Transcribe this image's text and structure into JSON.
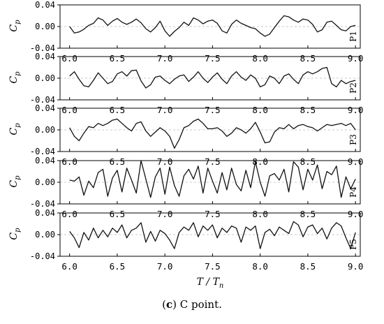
{
  "figure": {
    "caption_letter": "c",
    "caption_paren_open": "(",
    "caption_paren_close": ")",
    "caption_text": " C point."
  },
  "chart_data": [
    {
      "type": "line",
      "panel": "P1",
      "ylabel": "Cp",
      "ylim": [
        -0.04,
        0.04
      ],
      "yticks": [
        "0.04",
        "0.00",
        "-0.04"
      ],
      "xlim": [
        5.9,
        9.05
      ],
      "xticks": [
        "6.0",
        "6.5",
        "7.0",
        "7.5",
        "8.0",
        "8.5",
        "9.0"
      ],
      "grid": "y-dashed",
      "series": [
        {
          "x": [
            6.0,
            6.05,
            6.1,
            6.15,
            6.2,
            6.25,
            6.3,
            6.35,
            6.4,
            6.45,
            6.5,
            6.55,
            6.6,
            6.65,
            6.7,
            6.75,
            6.8,
            6.85,
            6.9,
            6.95,
            7.0,
            7.05,
            7.1,
            7.15,
            7.2,
            7.25,
            7.3,
            7.35,
            7.4,
            7.45,
            7.5,
            7.55,
            7.6,
            7.65,
            7.7,
            7.75,
            7.8,
            7.85,
            7.9,
            7.95,
            8.0,
            8.05,
            8.1,
            8.15,
            8.2,
            8.25,
            8.3,
            8.35,
            8.4,
            8.45,
            8.5,
            8.55,
            8.6,
            8.65,
            8.7,
            8.75,
            8.8,
            8.85,
            8.9,
            8.95,
            9.0
          ],
          "y": [
            0.0,
            -0.012,
            -0.01,
            -0.005,
            0.002,
            0.006,
            0.016,
            0.012,
            0.002,
            0.01,
            0.015,
            0.008,
            0.004,
            0.008,
            0.014,
            0.007,
            -0.004,
            -0.01,
            -0.002,
            0.01,
            -0.008,
            -0.018,
            -0.009,
            -0.002,
            0.008,
            0.002,
            0.016,
            0.012,
            0.005,
            0.01,
            0.012,
            0.006,
            -0.008,
            -0.012,
            0.004,
            0.012,
            0.006,
            0.002,
            -0.002,
            -0.004,
            -0.012,
            -0.018,
            -0.014,
            -0.002,
            0.01,
            0.02,
            0.018,
            0.012,
            0.008,
            0.014,
            0.012,
            0.004,
            -0.01,
            -0.006,
            0.008,
            0.01,
            0.002,
            -0.006,
            -0.008,
            0.0,
            0.002
          ]
        }
      ]
    },
    {
      "type": "line",
      "panel": "P2",
      "ylabel": "Cp",
      "ylim": [
        -0.04,
        0.04
      ],
      "yticks": [
        "0.04",
        "0.00",
        "-0.04"
      ],
      "xlim": [
        5.9,
        9.05
      ],
      "xticks": [
        "6.0",
        "6.5",
        "7.0",
        "7.5",
        "8.0",
        "8.5",
        "9.0"
      ],
      "grid": "y-dashed",
      "series": [
        {
          "x": [
            6.0,
            6.05,
            6.1,
            6.15,
            6.2,
            6.25,
            6.3,
            6.35,
            6.4,
            6.45,
            6.5,
            6.55,
            6.6,
            6.65,
            6.7,
            6.75,
            6.8,
            6.85,
            6.9,
            6.95,
            7.0,
            7.05,
            7.1,
            7.15,
            7.2,
            7.25,
            7.3,
            7.35,
            7.4,
            7.45,
            7.5,
            7.55,
            7.6,
            7.65,
            7.7,
            7.75,
            7.8,
            7.85,
            7.9,
            7.95,
            8.0,
            8.05,
            8.1,
            8.15,
            8.2,
            8.25,
            8.3,
            8.35,
            8.4,
            8.45,
            8.5,
            8.55,
            8.6,
            8.65,
            8.7,
            8.75,
            8.8,
            8.85,
            8.9,
            8.95,
            9.0
          ],
          "y": [
            0.004,
            0.012,
            -0.002,
            -0.014,
            -0.016,
            -0.004,
            0.01,
            0.0,
            -0.01,
            -0.006,
            0.008,
            0.012,
            0.004,
            0.014,
            0.015,
            -0.005,
            -0.018,
            -0.012,
            0.002,
            0.004,
            -0.004,
            -0.01,
            -0.002,
            0.004,
            0.006,
            -0.006,
            0.002,
            0.012,
            0.0,
            -0.008,
            0.002,
            0.01,
            -0.002,
            -0.01,
            0.004,
            0.012,
            0.002,
            -0.004,
            0.006,
            0.0,
            -0.016,
            -0.012,
            0.004,
            0.0,
            -0.01,
            0.004,
            0.008,
            -0.002,
            -0.01,
            0.006,
            0.012,
            0.008,
            0.012,
            0.018,
            0.02,
            -0.01,
            -0.016,
            -0.004,
            -0.01,
            -0.006,
            -0.004
          ]
        }
      ]
    },
    {
      "type": "line",
      "panel": "P3",
      "ylabel": "Cp",
      "ylim": [
        -0.04,
        0.04
      ],
      "yticks": [
        "0.04",
        "0.00",
        "-0.04"
      ],
      "xlim": [
        5.9,
        9.05
      ],
      "xticks": [
        "6.0",
        "6.5",
        "7.0",
        "7.5",
        "8.0",
        "8.5",
        "9.0"
      ],
      "grid": "y-dashed",
      "series": [
        {
          "x": [
            6.0,
            6.05,
            6.1,
            6.15,
            6.2,
            6.25,
            6.3,
            6.35,
            6.4,
            6.45,
            6.5,
            6.55,
            6.6,
            6.65,
            6.7,
            6.75,
            6.8,
            6.85,
            6.9,
            6.95,
            7.0,
            7.05,
            7.1,
            7.15,
            7.2,
            7.25,
            7.3,
            7.35,
            7.4,
            7.45,
            7.5,
            7.55,
            7.6,
            7.65,
            7.7,
            7.75,
            7.8,
            7.85,
            7.9,
            7.95,
            8.0,
            8.05,
            8.1,
            8.15,
            8.2,
            8.25,
            8.3,
            8.35,
            8.4,
            8.45,
            8.5,
            8.55,
            8.6,
            8.65,
            8.7,
            8.75,
            8.8,
            8.85,
            8.9,
            8.95,
            9.0
          ],
          "y": [
            0.004,
            -0.012,
            -0.02,
            -0.006,
            0.006,
            0.004,
            0.012,
            0.008,
            0.012,
            0.018,
            0.02,
            0.012,
            0.004,
            -0.002,
            0.012,
            0.015,
            -0.002,
            -0.012,
            -0.004,
            0.004,
            -0.002,
            -0.012,
            -0.034,
            -0.018,
            0.004,
            0.008,
            0.016,
            0.02,
            0.012,
            0.002,
            0.002,
            0.004,
            -0.002,
            -0.012,
            -0.006,
            0.004,
            0.0,
            -0.006,
            0.002,
            0.014,
            -0.004,
            -0.024,
            -0.022,
            -0.004,
            0.004,
            0.002,
            0.01,
            0.002,
            0.008,
            0.01,
            0.006,
            0.004,
            -0.002,
            0.004,
            0.01,
            0.008,
            0.01,
            0.012,
            0.008,
            0.012,
            0.0
          ]
        }
      ]
    },
    {
      "type": "line",
      "panel": "P4",
      "ylabel": "Cp",
      "ylim": [
        -0.04,
        0.04
      ],
      "yticks": [
        "0.04",
        "0.00",
        "-0.04"
      ],
      "xlim": [
        5.9,
        9.05
      ],
      "xticks": [
        "6.0",
        "6.5",
        "7.0",
        "7.5",
        "8.0",
        "8.5",
        "9.0"
      ],
      "grid": "y-dashed",
      "series": [
        {
          "x": [
            6.0,
            6.05,
            6.1,
            6.15,
            6.2,
            6.25,
            6.3,
            6.35,
            6.4,
            6.45,
            6.5,
            6.55,
            6.6,
            6.65,
            6.7,
            6.75,
            6.8,
            6.85,
            6.9,
            6.95,
            7.0,
            7.05,
            7.1,
            7.15,
            7.2,
            7.25,
            7.3,
            7.35,
            7.4,
            7.45,
            7.5,
            7.55,
            7.6,
            7.65,
            7.7,
            7.75,
            7.8,
            7.85,
            7.9,
            7.95,
            8.0,
            8.05,
            8.1,
            8.15,
            8.2,
            8.25,
            8.3,
            8.35,
            8.4,
            8.45,
            8.5,
            8.55,
            8.6,
            8.65,
            8.7,
            8.75,
            8.8,
            8.85,
            8.9,
            8.95,
            9.0
          ],
          "y": [
            0.004,
            0.002,
            0.01,
            -0.024,
            0.002,
            -0.01,
            0.018,
            0.024,
            -0.026,
            0.008,
            0.022,
            -0.018,
            0.026,
            0.004,
            -0.02,
            0.04,
            0.006,
            -0.028,
            0.01,
            0.026,
            -0.022,
            0.028,
            -0.006,
            -0.026,
            0.012,
            0.024,
            0.006,
            0.03,
            -0.02,
            0.026,
            0.002,
            -0.02,
            0.018,
            -0.014,
            0.026,
            -0.004,
            -0.016,
            0.022,
            -0.01,
            0.038,
            0.0,
            -0.026,
            0.012,
            0.016,
            0.004,
            0.024,
            -0.018,
            0.038,
            0.028,
            -0.014,
            0.024,
            0.004,
            0.032,
            -0.012,
            0.02,
            0.014,
            0.03,
            -0.028,
            0.01,
            -0.012,
            0.006
          ]
        }
      ]
    },
    {
      "type": "line",
      "panel": "P5",
      "ylabel": "Cp",
      "ylim": [
        -0.04,
        0.04
      ],
      "yticks": [
        "0.04",
        "0.00",
        "-0.04"
      ],
      "xlim": [
        5.9,
        9.05
      ],
      "xticks": [
        "6.0",
        "6.5",
        "7.0",
        "7.5",
        "8.0",
        "8.5",
        "9.0"
      ],
      "xlabel": "T / Tn",
      "grid": "y-dashed",
      "series": [
        {
          "x": [
            6.0,
            6.05,
            6.1,
            6.15,
            6.2,
            6.25,
            6.3,
            6.35,
            6.4,
            6.45,
            6.5,
            6.55,
            6.6,
            6.65,
            6.7,
            6.75,
            6.8,
            6.85,
            6.9,
            6.95,
            7.0,
            7.05,
            7.1,
            7.15,
            7.2,
            7.25,
            7.3,
            7.35,
            7.4,
            7.45,
            7.5,
            7.55,
            7.6,
            7.65,
            7.7,
            7.75,
            7.8,
            7.85,
            7.9,
            7.95,
            8.0,
            8.05,
            8.1,
            8.15,
            8.2,
            8.25,
            8.3,
            8.35,
            8.4,
            8.45,
            8.5,
            8.55,
            8.6,
            8.65,
            8.7,
            8.75,
            8.8,
            8.85,
            8.9,
            8.95,
            9.0
          ],
          "y": [
            0.006,
            -0.006,
            -0.024,
            0.004,
            -0.01,
            0.012,
            -0.006,
            0.008,
            -0.004,
            0.012,
            0.004,
            0.018,
            -0.006,
            0.008,
            0.012,
            0.022,
            -0.014,
            0.006,
            -0.012,
            0.008,
            0.002,
            -0.01,
            -0.026,
            0.004,
            0.014,
            0.008,
            0.022,
            -0.004,
            0.016,
            0.008,
            0.018,
            -0.006,
            0.012,
            0.004,
            0.016,
            0.012,
            -0.014,
            0.014,
            0.008,
            0.016,
            -0.026,
            0.004,
            0.01,
            -0.002,
            0.014,
            0.008,
            0.002,
            0.024,
            0.018,
            -0.004,
            0.014,
            0.018,
            0.002,
            0.012,
            -0.008,
            0.012,
            0.022,
            0.016,
            -0.006,
            -0.026,
            0.004
          ]
        }
      ]
    }
  ]
}
